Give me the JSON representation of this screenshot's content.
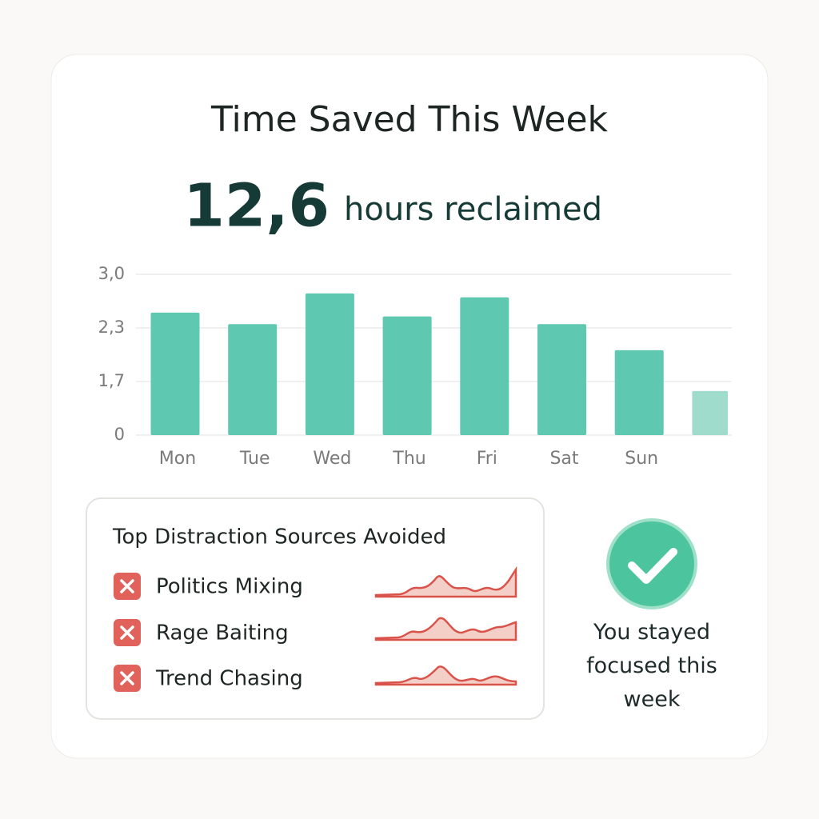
{
  "card": {
    "title": "Time Saved This Week",
    "headline_value": "12,6",
    "headline_label": "hours reclaimed"
  },
  "chart_data": {
    "type": "bar",
    "categories": [
      "Mon",
      "Tue",
      "Wed",
      "Thu",
      "Fri",
      "Sat",
      "Sun",
      null
    ],
    "values": [
      2.5,
      2.35,
      2.75,
      2.45,
      2.7,
      2.35,
      2.05,
      1.4
    ],
    "colors": [
      "#5ec8b0",
      "#5ec8b0",
      "#5ec8b0",
      "#5ec8b0",
      "#5ec8b0",
      "#5ec8b0",
      "#5ec8b0",
      "#9fdccc"
    ],
    "ylim": [
      0,
      3
    ],
    "yticks": [
      {
        "value": 3,
        "label": "3,0"
      },
      {
        "value": 2.3,
        "label": "2,3"
      },
      {
        "value": 1.7,
        "label": "1,7"
      },
      0
    ],
    "grid": true
  },
  "distractions": {
    "title": "Top Distraction Sources Avoided",
    "items": [
      "Politics Mixing",
      "Rage Baiting",
      "Trend Chasing"
    ]
  },
  "status": {
    "text": "You stayed focused this week"
  }
}
